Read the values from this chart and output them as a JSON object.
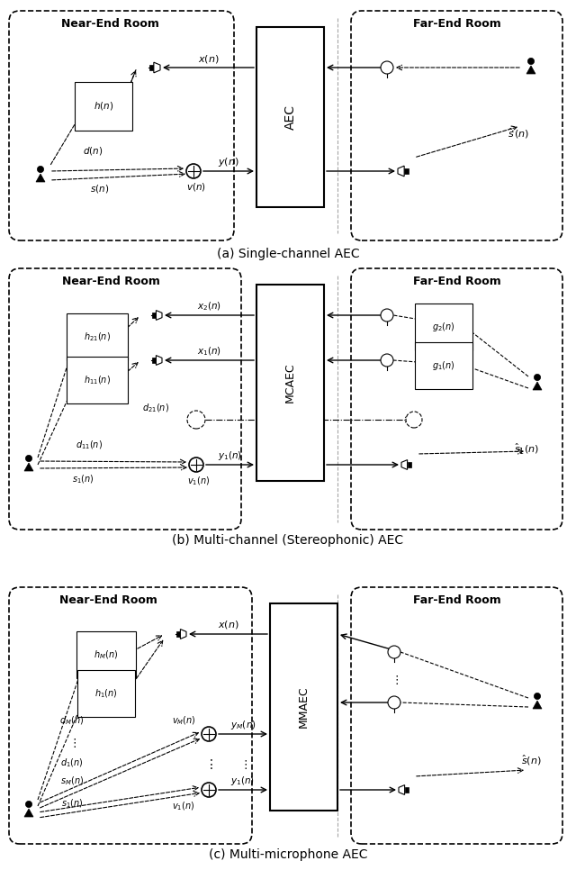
{
  "fig_width": 6.4,
  "fig_height": 9.66,
  "bg_color": "white",
  "panel_a_caption": "(a) Single-channel AEC",
  "panel_b_caption": "(b) Multi-channel (Stereophonic) AEC",
  "panel_c_caption": "(c) Multi-microphone AEC"
}
